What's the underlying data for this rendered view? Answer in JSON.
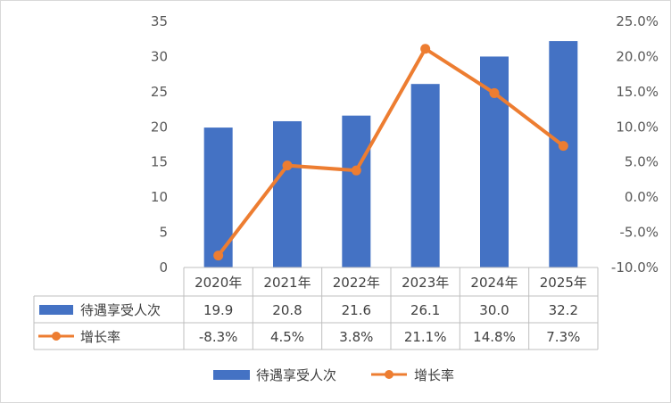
{
  "chart_data": {
    "type": "bar+line",
    "title": "",
    "categories": [
      "2020年",
      "2021年",
      "2022年",
      "2023年",
      "2024年",
      "2025年"
    ],
    "series": [
      {
        "name": "待遇享受人次",
        "type": "bar",
        "axis": "left",
        "values": [
          19.9,
          20.8,
          21.6,
          26.1,
          30.0,
          32.2
        ],
        "labels": [
          "19.9",
          "20.8",
          "21.6",
          "26.1",
          "30.0",
          "32.2"
        ],
        "color": "#4472C4"
      },
      {
        "name": "增长率",
        "type": "line",
        "axis": "right",
        "values": [
          -8.3,
          4.5,
          3.8,
          21.1,
          14.8,
          7.3
        ],
        "labels": [
          "-8.3%",
          "4.5%",
          "3.8%",
          "21.1%",
          "14.8%",
          "7.3%"
        ],
        "color": "#ED7D31"
      }
    ],
    "left_axis": {
      "ylim": [
        0,
        35
      ],
      "ticks": [
        0,
        5,
        10,
        15,
        20,
        25,
        30,
        35
      ],
      "tick_labels": [
        "0",
        "5",
        "10",
        "15",
        "20",
        "25",
        "30",
        "35"
      ]
    },
    "right_axis": {
      "ylim": [
        -10,
        25
      ],
      "ticks": [
        -10,
        -5,
        0,
        5,
        10,
        15,
        20,
        25
      ],
      "tick_labels": [
        "-10.0%",
        "-5.0%",
        "0.0%",
        "5.0%",
        "10.0%",
        "15.0%",
        "20.0%",
        "25.0%"
      ]
    },
    "data_table": true,
    "legend_position": "bottom",
    "grid": false
  }
}
